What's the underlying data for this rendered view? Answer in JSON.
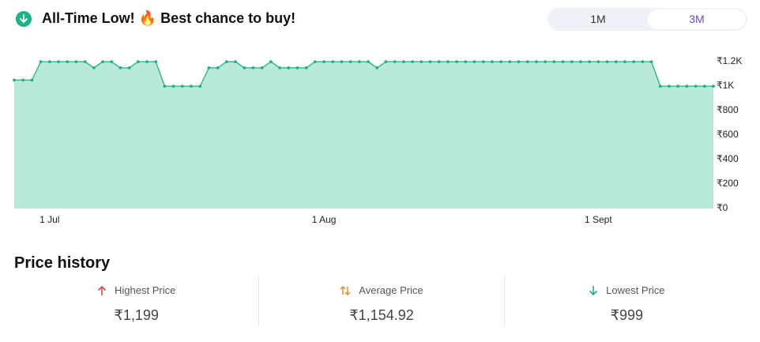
{
  "header": {
    "title": "All-Time Low! 🔥 Best chance to buy!",
    "tabs": [
      "1M",
      "3M"
    ]
  },
  "chart_data": {
    "type": "area",
    "categories": [
      null,
      null,
      null,
      null,
      "1 Jul",
      null,
      null,
      null,
      null,
      null,
      null,
      null,
      null,
      null,
      null,
      null,
      null,
      null,
      null,
      null,
      null,
      null,
      null,
      null,
      null,
      null,
      null,
      null,
      null,
      null,
      null,
      null,
      null,
      null,
      null,
      "1 Aug",
      null,
      null,
      null,
      null,
      null,
      null,
      null,
      null,
      null,
      null,
      null,
      null,
      null,
      null,
      null,
      null,
      null,
      null,
      null,
      null,
      null,
      null,
      null,
      null,
      null,
      null,
      null,
      null,
      null,
      null,
      "1 Sept",
      null,
      null,
      null,
      null,
      null,
      null,
      null,
      null,
      null,
      null,
      null,
      null,
      null
    ],
    "series": [
      {
        "color": "#1eb386",
        "fill": "#b8e9d9",
        "values": [
          1049,
          1049,
          1049,
          1199,
          1199,
          1199,
          1199,
          1199,
          1199,
          1149,
          1199,
          1199,
          1149,
          1149,
          1199,
          1199,
          1199,
          999,
          999,
          999,
          999,
          999,
          1149,
          1149,
          1199,
          1199,
          1149,
          1149,
          1149,
          1199,
          1149,
          1149,
          1149,
          1149,
          1199,
          1199,
          1199,
          1199,
          1199,
          1199,
          1199,
          1149,
          1199,
          1199,
          1199,
          1199,
          1199,
          1199,
          1199,
          1199,
          1199,
          1199,
          1199,
          1199,
          1199,
          1199,
          1199,
          1199,
          1199,
          1199,
          1199,
          1199,
          1199,
          1199,
          1199,
          1199,
          1199,
          1199,
          1199,
          1199,
          1199,
          1199,
          1199,
          999,
          999,
          999,
          999,
          999,
          999,
          999
        ]
      }
    ],
    "ylim": [
      0,
      1200
    ],
    "yticks": [
      {
        "value": 0,
        "label": "₹0"
      },
      {
        "value": 200,
        "label": "₹200"
      },
      {
        "value": 400,
        "label": "₹400"
      },
      {
        "value": 600,
        "label": "₹600"
      },
      {
        "value": 800,
        "label": "₹800"
      },
      {
        "value": 1000,
        "label": "₹1K"
      },
      {
        "value": 1200,
        "label": "₹1.2K"
      }
    ]
  },
  "price_history": {
    "title": "Price history",
    "stats": [
      {
        "label": "Highest Price",
        "value": "₹1,199"
      },
      {
        "label": "Average Price",
        "value": "₹1,154.92"
      },
      {
        "label": "Lowest Price",
        "value": "₹999"
      }
    ]
  }
}
